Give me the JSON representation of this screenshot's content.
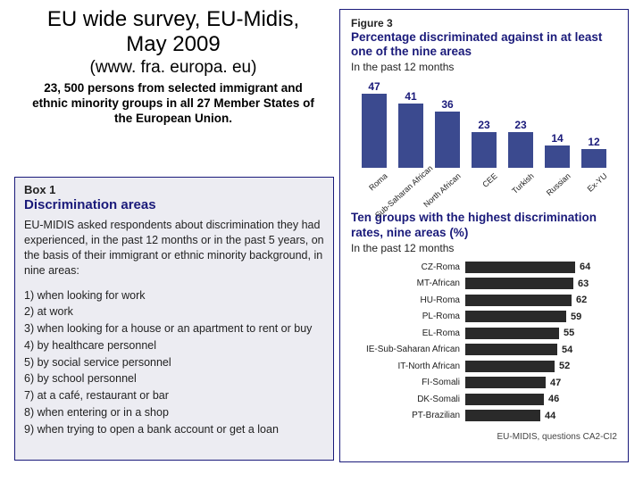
{
  "left": {
    "title": "EU wide survey, EU-Midis, May 2009",
    "subtitle": "(www. fra. europa. eu)",
    "desc": "23, 500 persons from selected immigrant and ethnic minority groups in all 27 Member States of the European Union."
  },
  "box1": {
    "label": "Box 1",
    "title": "Discrimination areas",
    "intro": "EU-MIDIS asked respondents about discrimination they had experienced, in the past 12 months or in the past 5 years, on the basis of their immigrant or ethnic minority background, in nine areas:",
    "items": [
      "1) when looking for work",
      "2) at work",
      "3) when looking for a house or an apartment to rent or buy",
      "4) by healthcare personnel",
      "5) by social service personnel",
      "6) by school personnel",
      "7) at a café, restaurant or bar",
      "8) when entering or in a shop",
      "9) when trying to open a bank account or get a loan"
    ]
  },
  "figure": {
    "label": "Figure 3",
    "title": "Percentage discriminated against in at least one of the nine areas",
    "sub": "In the past 12 months",
    "bar_chart": {
      "type": "bar",
      "max": 50,
      "bar_color": "#3b4a8f",
      "value_color": "#1a1a7a",
      "bars": [
        {
          "label": "Roma",
          "value": 47
        },
        {
          "label": "Sub-Saharan African",
          "value": 41
        },
        {
          "label": "North African",
          "value": 36
        },
        {
          "label": "CEE",
          "value": 23
        },
        {
          "label": "Turkish",
          "value": 23
        },
        {
          "label": "Russian",
          "value": 14
        },
        {
          "label": "Ex-YU",
          "value": 12
        }
      ]
    },
    "hchart_title": "Ten groups with the highest discrimination rates, nine areas (%)",
    "hchart_sub": "In the past 12 months",
    "hchart": {
      "type": "bar-horizontal",
      "max": 70,
      "bar_color": "#2a2a2a",
      "rows": [
        {
          "label": "CZ-Roma",
          "value": 64
        },
        {
          "label": "MT-African",
          "value": 63
        },
        {
          "label": "HU-Roma",
          "value": 62
        },
        {
          "label": "PL-Roma",
          "value": 59
        },
        {
          "label": "EL-Roma",
          "value": 55
        },
        {
          "label": "IE-Sub-Saharan African",
          "value": 54
        },
        {
          "label": "IT-North African",
          "value": 52
        },
        {
          "label": "FI-Somali",
          "value": 47
        },
        {
          "label": "DK-Somali",
          "value": 46
        },
        {
          "label": "PT-Brazilian",
          "value": 44
        }
      ]
    },
    "footer": "EU-MIDIS, questions CA2-CI2"
  }
}
